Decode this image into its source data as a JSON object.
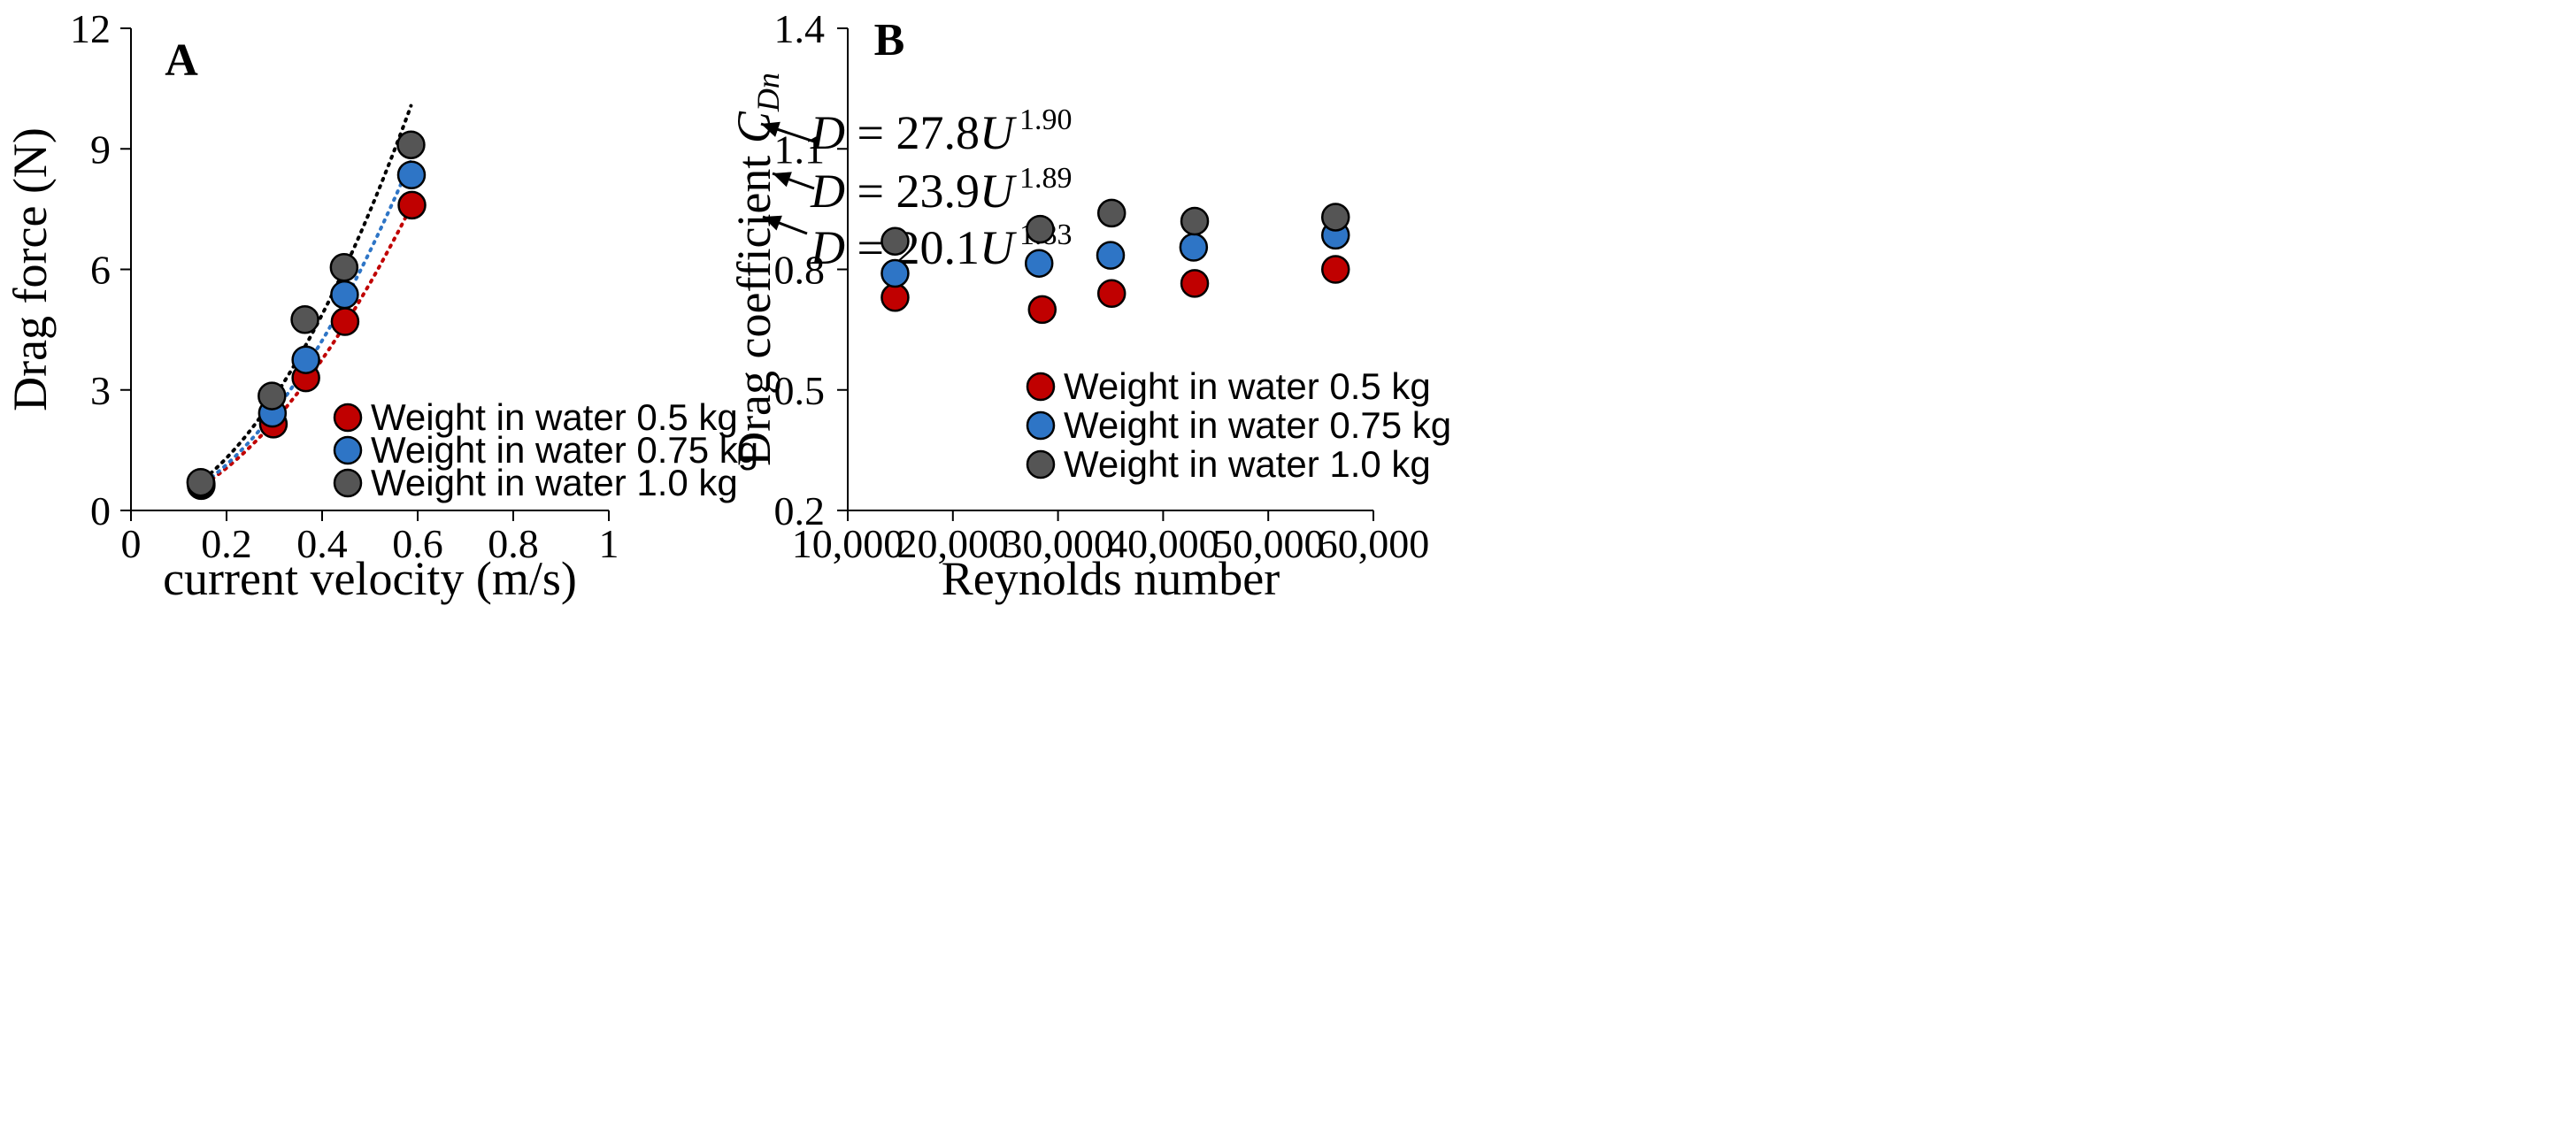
{
  "colors": {
    "red": "#c00000",
    "blue": "#2e75c6",
    "black": "#000000",
    "dot_red": "#c00000",
    "dot_blue": "#2e75c6",
    "dot_black": "#555555"
  },
  "chart_data": [
    {
      "type": "scatter",
      "panel_label": "A",
      "xlabel": "current velocity (m/s)",
      "ylabel": "Drag force  (N)",
      "xlim": [
        0,
        1
      ],
      "ylim": [
        0,
        12
      ],
      "xticks": [
        "0",
        "0.2",
        "0.4",
        "0.6",
        "0.8",
        "1"
      ],
      "yticks": [
        "0",
        "3",
        "6",
        "9",
        "12"
      ],
      "series": [
        {
          "name": "Weight in water 0.5 kg",
          "color": "red",
          "x": [
            0.147,
            0.298,
            0.366,
            0.448,
            0.588
          ],
          "y": [
            0.62,
            2.15,
            3.3,
            4.7,
            7.6
          ],
          "fit": {
            "a": 20.1,
            "b": 1.83,
            "label_D": "D",
            "label_mid": " = 20.1",
            "label_U": "U",
            "exponent": "1.83"
          }
        },
        {
          "name": "Weight in water 0.75 kg",
          "color": "blue",
          "x": [
            0.147,
            0.296,
            0.366,
            0.447,
            0.587
          ],
          "y": [
            0.66,
            2.42,
            3.75,
            5.37,
            8.35
          ],
          "fit": {
            "a": 23.9,
            "b": 1.89,
            "label_D": "D",
            "label_mid": " = 23.9",
            "label_U": "U",
            "exponent": "1.89"
          }
        },
        {
          "name": "Weight in water 1.0 kg",
          "color": "black",
          "x": [
            0.146,
            0.295,
            0.364,
            0.446,
            0.586
          ],
          "y": [
            0.7,
            2.85,
            4.75,
            6.05,
            9.1
          ],
          "fit": {
            "a": 27.8,
            "b": 1.9,
            "label_D": "D",
            "label_mid": " = 27.8",
            "label_U": "U",
            "exponent": "1.90"
          }
        }
      ],
      "legend": [
        "Weight in water 0.5 kg",
        "Weight in water 0.75 kg",
        "Weight in water 1.0 kg"
      ]
    },
    {
      "type": "scatter",
      "panel_label": "B",
      "xlabel": "Reynolds number",
      "ylabel": "Drag coefficient ",
      "ylabel_symbol": "C",
      "ylabel_subscript": "Dn",
      "xlim": [
        10000,
        60000
      ],
      "ylim": [
        0.2,
        1.4
      ],
      "xticks": [
        "10,000",
        "20,000",
        "30,000",
        "40,000",
        "50,000",
        "60,000"
      ],
      "yticks": [
        "0.2",
        "0.5",
        "0.8",
        "1.1",
        "1.4"
      ],
      "series": [
        {
          "name": "Weight in water 0.5 kg",
          "color": "red",
          "x": [
            14500,
            28500,
            35100,
            43000,
            56400
          ],
          "y": [
            0.73,
            0.7,
            0.74,
            0.765,
            0.8
          ]
        },
        {
          "name": "Weight in water 0.75 kg",
          "color": "blue",
          "x": [
            14500,
            28200,
            35000,
            42900,
            56400
          ],
          "y": [
            0.79,
            0.815,
            0.835,
            0.855,
            0.885
          ]
        },
        {
          "name": "Weight in water 1.0 kg",
          "color": "black",
          "x": [
            14500,
            28300,
            35100,
            43000,
            56400
          ],
          "y": [
            0.87,
            0.9,
            0.94,
            0.92,
            0.93
          ]
        }
      ],
      "legend": [
        "Weight in water 0.5 kg",
        "Weight in water 0.75 kg",
        "Weight in water 1.0 kg"
      ]
    }
  ]
}
